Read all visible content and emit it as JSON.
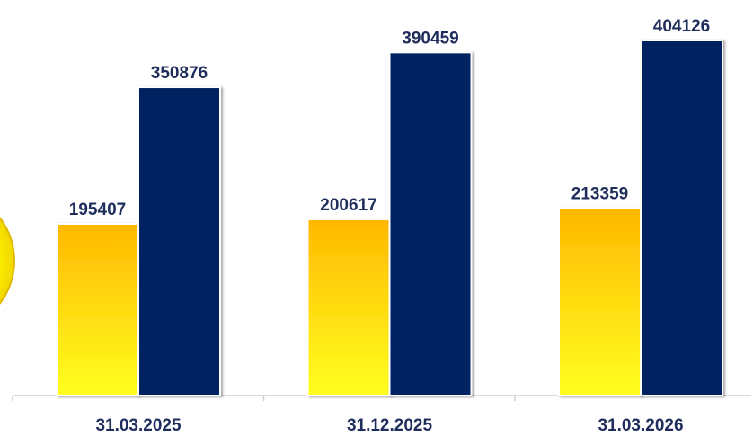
{
  "chart_data": {
    "type": "bar",
    "categories": [
      "31.03.2025",
      "31.12.2025",
      "31.03.2026"
    ],
    "series": [
      {
        "values": [
          195407,
          200617,
          213359
        ],
        "color": "#ffc000",
        "gradient_to": "#ffff33"
      },
      {
        "values": [
          350876,
          390459,
          404126
        ],
        "color": "#002060"
      }
    ],
    "title": "",
    "xlabel": "",
    "ylabel": "",
    "ylim": [
      0,
      404126
    ],
    "grid": false,
    "legend": "none"
  }
}
